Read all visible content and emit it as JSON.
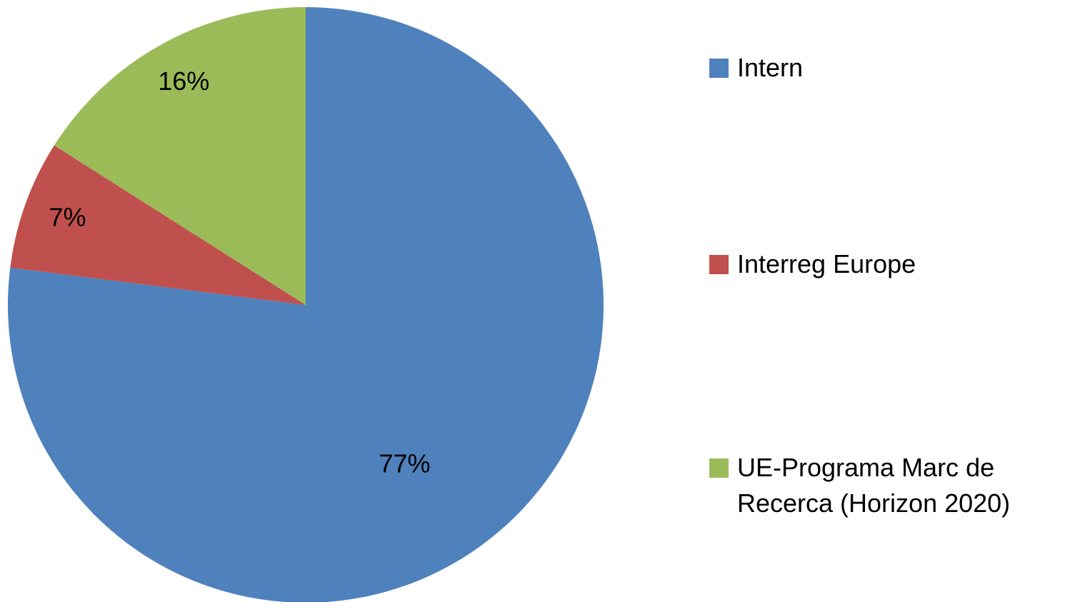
{
  "chart_data": {
    "type": "pie",
    "categories": [
      "Intern",
      "Interreg Europe",
      "UE-Programa Marc de Recerca (Horizon 2020)"
    ],
    "values": [
      77,
      7,
      16
    ],
    "value_labels": [
      "77%",
      "7%",
      "16%"
    ],
    "colors": [
      "#4f81bd",
      "#c0504d",
      "#9bbb59"
    ],
    "legend": "right"
  }
}
